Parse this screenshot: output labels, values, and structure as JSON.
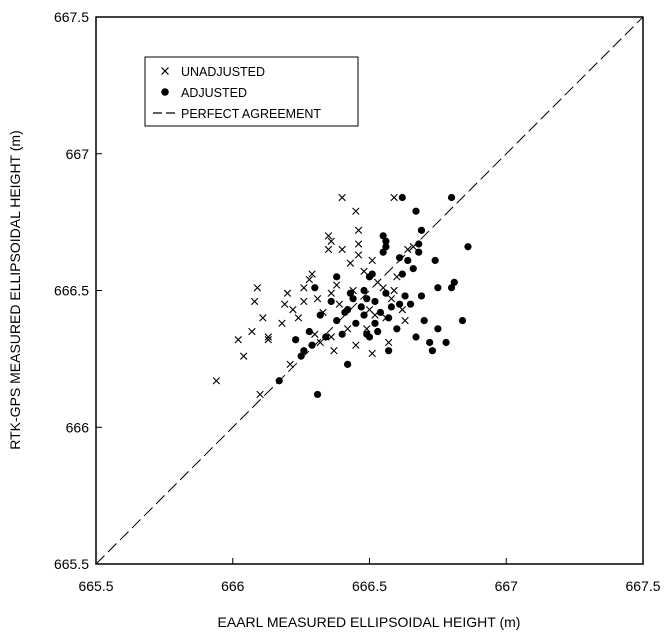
{
  "chart_data": {
    "type": "scatter",
    "title": "",
    "xlabel": "EAARL MEASURED ELLIPSOIDAL HEIGHT (m)",
    "ylabel": "RTK-GPS MEASURED ELLIPSOIDAL HEIGHT (m)",
    "xlim": [
      665.5,
      667.5
    ],
    "ylim": [
      665.5,
      667.5
    ],
    "xticks": [
      665.5,
      666,
      666.5,
      667,
      667.5
    ],
    "yticks": [
      665.5,
      666,
      666.5,
      667,
      667.5
    ],
    "xtick_labels": [
      "665.5",
      "666",
      "666.5",
      "667",
      "667.5"
    ],
    "ytick_labels": [
      "665.5",
      "666",
      "666.5",
      "667",
      "667.5"
    ],
    "grid": false,
    "legend_position": "top-left",
    "legend": [
      "UNADJUSTED",
      "ADJUSTED",
      "PERFECT AGREEMENT"
    ],
    "reference_line": {
      "name": "PERFECT AGREEMENT",
      "x": [
        665.5,
        667.5
      ],
      "y": [
        665.5,
        667.5
      ],
      "style": "dashed"
    },
    "series": [
      {
        "name": "UNADJUSTED",
        "marker": "x",
        "points": [
          [
            665.94,
            666.17
          ],
          [
            666.02,
            666.32
          ],
          [
            666.04,
            666.26
          ],
          [
            666.07,
            666.35
          ],
          [
            666.08,
            666.46
          ],
          [
            666.09,
            666.51
          ],
          [
            666.1,
            666.12
          ],
          [
            666.11,
            666.4
          ],
          [
            666.13,
            666.32
          ],
          [
            666.13,
            666.33
          ],
          [
            666.18,
            666.38
          ],
          [
            666.19,
            666.45
          ],
          [
            666.2,
            666.49
          ],
          [
            666.21,
            666.23
          ],
          [
            666.22,
            666.43
          ],
          [
            666.24,
            666.4
          ],
          [
            666.26,
            666.46
          ],
          [
            666.26,
            666.51
          ],
          [
            666.28,
            666.54
          ],
          [
            666.29,
            666.56
          ],
          [
            666.3,
            666.34
          ],
          [
            666.31,
            666.47
          ],
          [
            666.32,
            666.31
          ],
          [
            666.33,
            666.42
          ],
          [
            666.35,
            666.7
          ],
          [
            666.35,
            666.65
          ],
          [
            666.36,
            666.68
          ],
          [
            666.36,
            666.49
          ],
          [
            666.36,
            666.33
          ],
          [
            666.37,
            666.28
          ],
          [
            666.38,
            666.52
          ],
          [
            666.39,
            666.45
          ],
          [
            666.4,
            666.65
          ],
          [
            666.4,
            666.84
          ],
          [
            666.42,
            666.36
          ],
          [
            666.43,
            666.6
          ],
          [
            666.44,
            666.5
          ],
          [
            666.45,
            666.79
          ],
          [
            666.45,
            666.3
          ],
          [
            666.46,
            666.63
          ],
          [
            666.46,
            666.67
          ],
          [
            666.46,
            666.72
          ],
          [
            666.48,
            666.57
          ],
          [
            666.49,
            666.36
          ],
          [
            666.5,
            666.43
          ],
          [
            666.51,
            666.61
          ],
          [
            666.51,
            666.27
          ],
          [
            666.52,
            666.41
          ],
          [
            666.53,
            666.53
          ],
          [
            666.55,
            666.51
          ],
          [
            666.56,
            666.4
          ],
          [
            666.57,
            666.31
          ],
          [
            666.58,
            666.47
          ],
          [
            666.59,
            666.5
          ],
          [
            666.59,
            666.84
          ],
          [
            666.6,
            666.55
          ],
          [
            666.62,
            666.43
          ],
          [
            666.63,
            666.39
          ],
          [
            666.64,
            666.65
          ],
          [
            666.66,
            666.66
          ]
        ]
      },
      {
        "name": "ADJUSTED",
        "marker": "filled-circle",
        "points": [
          [
            666.17,
            666.17
          ],
          [
            666.23,
            666.32
          ],
          [
            666.25,
            666.26
          ],
          [
            666.26,
            666.28
          ],
          [
            666.28,
            666.35
          ],
          [
            666.29,
            666.3
          ],
          [
            666.3,
            666.51
          ],
          [
            666.31,
            666.12
          ],
          [
            666.32,
            666.41
          ],
          [
            666.34,
            666.33
          ],
          [
            666.36,
            666.46
          ],
          [
            666.38,
            666.55
          ],
          [
            666.38,
            666.39
          ],
          [
            666.4,
            666.34
          ],
          [
            666.41,
            666.42
          ],
          [
            666.42,
            666.23
          ],
          [
            666.42,
            666.43
          ],
          [
            666.43,
            666.49
          ],
          [
            666.44,
            666.47
          ],
          [
            666.45,
            666.38
          ],
          [
            666.47,
            666.44
          ],
          [
            666.48,
            666.41
          ],
          [
            666.48,
            666.5
          ],
          [
            666.49,
            666.47
          ],
          [
            666.49,
            666.34
          ],
          [
            666.5,
            666.55
          ],
          [
            666.5,
            666.33
          ],
          [
            666.51,
            666.56
          ],
          [
            666.52,
            666.46
          ],
          [
            666.52,
            666.38
          ],
          [
            666.53,
            666.35
          ],
          [
            666.54,
            666.42
          ],
          [
            666.55,
            666.7
          ],
          [
            666.55,
            666.64
          ],
          [
            666.56,
            666.68
          ],
          [
            666.56,
            666.66
          ],
          [
            666.56,
            666.49
          ],
          [
            666.57,
            666.28
          ],
          [
            666.57,
            666.4
          ],
          [
            666.58,
            666.44
          ],
          [
            666.6,
            666.36
          ],
          [
            666.61,
            666.45
          ],
          [
            666.61,
            666.62
          ],
          [
            666.62,
            666.84
          ],
          [
            666.62,
            666.56
          ],
          [
            666.63,
            666.48
          ],
          [
            666.64,
            666.61
          ],
          [
            666.65,
            666.45
          ],
          [
            666.66,
            666.58
          ],
          [
            666.67,
            666.79
          ],
          [
            666.67,
            666.33
          ],
          [
            666.68,
            666.64
          ],
          [
            666.68,
            666.67
          ],
          [
            666.69,
            666.48
          ],
          [
            666.69,
            666.72
          ],
          [
            666.7,
            666.39
          ],
          [
            666.72,
            666.31
          ],
          [
            666.73,
            666.28
          ],
          [
            666.74,
            666.61
          ],
          [
            666.75,
            666.36
          ],
          [
            666.75,
            666.51
          ],
          [
            666.78,
            666.31
          ],
          [
            666.8,
            666.84
          ],
          [
            666.8,
            666.51
          ],
          [
            666.81,
            666.53
          ],
          [
            666.84,
            666.39
          ],
          [
            666.86,
            666.66
          ]
        ]
      }
    ]
  }
}
